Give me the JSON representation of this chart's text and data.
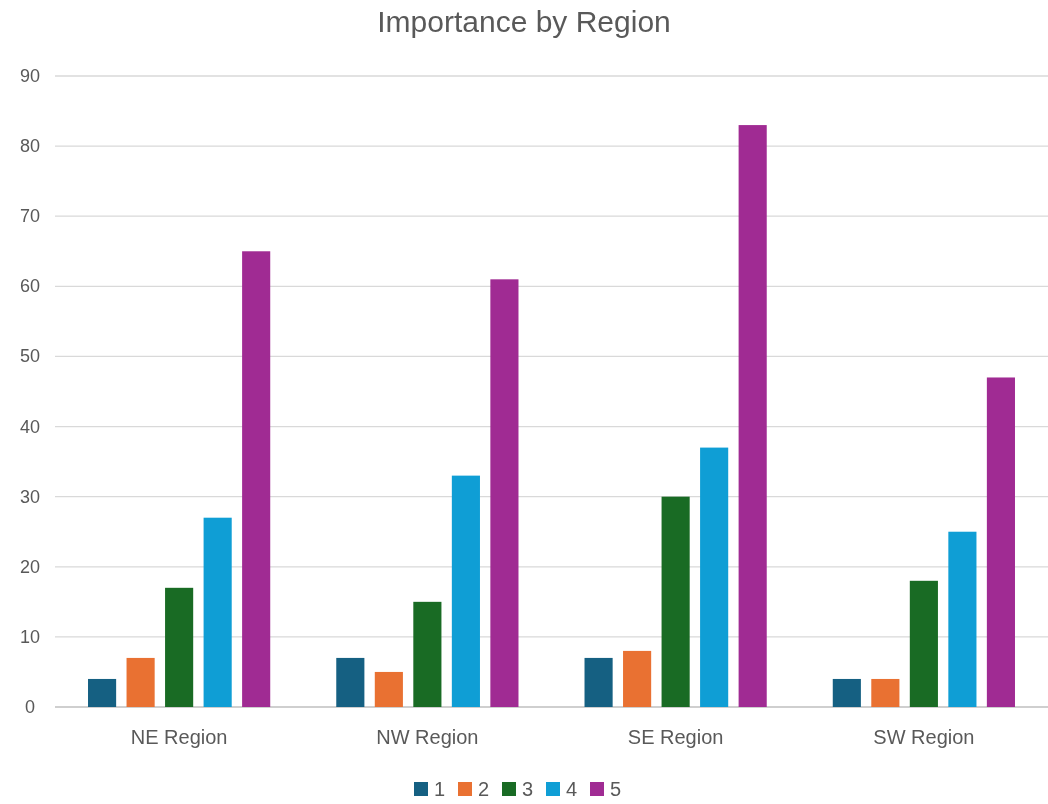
{
  "chart_data": {
    "type": "bar",
    "title": "Importance by Region",
    "categories": [
      "NE Region",
      "NW Region",
      "SE Region",
      "SW Region"
    ],
    "series": [
      {
        "name": "1",
        "color": "#156082",
        "values": [
          4,
          7,
          7,
          4
        ]
      },
      {
        "name": "2",
        "color": "#e97132",
        "values": [
          7,
          5,
          8,
          4
        ]
      },
      {
        "name": "3",
        "color": "#196b24",
        "values": [
          17,
          15,
          30,
          18
        ]
      },
      {
        "name": "4",
        "color": "#0f9ed5",
        "values": [
          27,
          33,
          37,
          25
        ]
      },
      {
        "name": "5",
        "color": "#a02b93",
        "values": [
          65,
          61,
          83,
          47
        ]
      }
    ],
    "ylim": [
      0,
      90
    ],
    "yticks": [
      0,
      10,
      20,
      30,
      40,
      50,
      60,
      70,
      80,
      90
    ],
    "grid": "y",
    "legend": "bottom"
  }
}
